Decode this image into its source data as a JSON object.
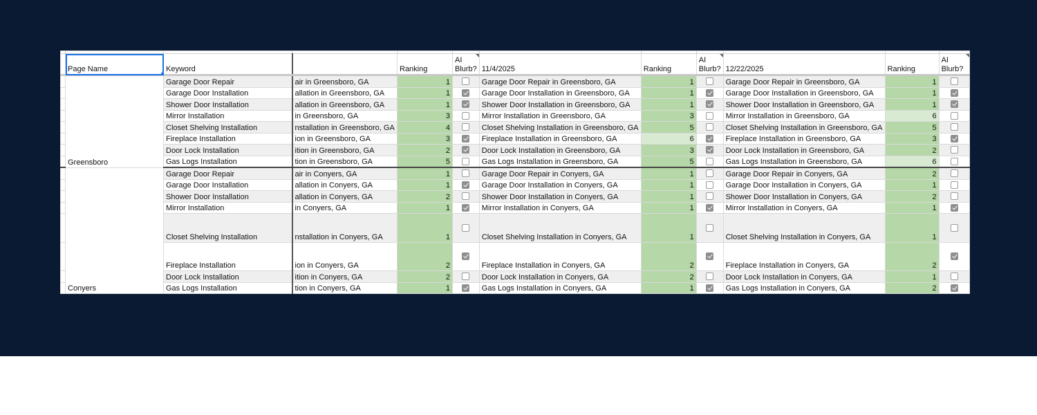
{
  "headers": {
    "page_name": "Page Name",
    "keyword": "Keyword",
    "col3": "",
    "ranking": "Ranking",
    "ai_blurb": "AI Blurb?",
    "date1": "11/4/2025",
    "date2": "12/22/2025"
  },
  "colors": {
    "background": "#0b1a33",
    "ranking_green": "#b6d7a8",
    "ranking_light_green": "#d9ead3",
    "selection": "#1a73e8"
  },
  "sections": [
    {
      "page_name": "Greensboro",
      "rows": [
        {
          "keyword": "Garage Door Repair",
          "c3": "air in Greensboro, GA",
          "r1": 1,
          "b1": false,
          "t2": "Garage Door Repair in Greensboro, GA",
          "r2": 1,
          "b2": false,
          "t3": "Garage Door Repair in Greensboro, GA",
          "r3": 1,
          "b3": false
        },
        {
          "keyword": "Garage Door Installation",
          "c3": "allation in Greensboro, GA",
          "r1": 1,
          "b1": true,
          "t2": "Garage Door Installation in Greensboro, GA",
          "r2": 1,
          "b2": true,
          "t3": "Garage Door Installation in Greensboro, GA",
          "r3": 1,
          "b3": true
        },
        {
          "keyword": "Shower Door Installation",
          "c3": "allation in Greensboro, GA",
          "r1": 1,
          "b1": true,
          "t2": "Shower Door Installation in Greensboro, GA",
          "r2": 1,
          "b2": true,
          "t3": "Shower Door Installation in Greensboro, GA",
          "r3": 1,
          "b3": true
        },
        {
          "keyword": "Mirror Installation",
          "c3": "in Greensboro, GA",
          "r1": 3,
          "b1": false,
          "t2": "Mirror Installation in Greensboro, GA",
          "r2": 3,
          "b2": false,
          "t3": "Mirror Installation in Greensboro, GA",
          "r3": 6,
          "b3": false
        },
        {
          "keyword": "Closet Shelving Installation",
          "c3": "nstallation in Greensboro, GA",
          "r1": 4,
          "b1": false,
          "t2": "Closet Shelving Installation in Greensboro, GA",
          "r2": 5,
          "b2": false,
          "t3": "Closet Shelving Installation in Greensboro, GA",
          "r3": 5,
          "b3": false
        },
        {
          "keyword": "Fireplace Installation",
          "c3": "ion in Greensboro, GA",
          "r1": 3,
          "b1": true,
          "t2": "Fireplace Installation in Greensboro, GA",
          "r2": 6,
          "b2": true,
          "t3": "Fireplace Installation in Greensboro, GA",
          "r3": 3,
          "b3": true
        },
        {
          "keyword": "Door Lock Installation",
          "c3": "ition in Greensboro, GA",
          "r1": 2,
          "b1": true,
          "t2": "Door Lock Installation in Greensboro, GA",
          "r2": 3,
          "b2": true,
          "t3": "Door Lock Installation in Greensboro, GA",
          "r3": 2,
          "b3": false
        },
        {
          "keyword": "Gas Logs Installation",
          "c3": "tion in Greensboro, GA",
          "r1": 5,
          "b1": false,
          "t2": "Gas Logs Installation in Greensboro, GA",
          "r2": 5,
          "b2": false,
          "t3": "Gas Logs Installation in Greensboro, GA",
          "r3": 6,
          "b3": false
        }
      ]
    },
    {
      "page_name": "Conyers",
      "rows": [
        {
          "keyword": "Garage Door Repair",
          "c3": "air in Conyers, GA",
          "r1": 1,
          "b1": false,
          "t2": "Garage Door Repair in Conyers, GA",
          "r2": 1,
          "b2": false,
          "t3": "Garage Door Repair in Conyers, GA",
          "r3": 2,
          "b3": false
        },
        {
          "keyword": "Garage Door Installation",
          "c3": "allation in Conyers, GA",
          "r1": 1,
          "b1": true,
          "t2": "Garage Door Installation in Conyers, GA",
          "r2": 1,
          "b2": false,
          "t3": "Garage Door Installation in Conyers, GA",
          "r3": 1,
          "b3": false
        },
        {
          "keyword": "Shower Door Installation",
          "c3": "allation in Conyers, GA",
          "r1": 2,
          "b1": false,
          "t2": "Shower Door Installation in Conyers, GA",
          "r2": 1,
          "b2": false,
          "t3": "Shower Door Installation in Conyers, GA",
          "r3": 2,
          "b3": false
        },
        {
          "keyword": "Mirror Installation",
          "c3": "in Conyers, GA",
          "r1": 1,
          "b1": true,
          "t2": "Mirror Installation in Conyers, GA",
          "r2": 1,
          "b2": true,
          "t3": "Mirror Installation in Conyers, GA",
          "r3": 1,
          "b3": true
        },
        {
          "keyword": "Closet Shelving Installation",
          "c3": "nstallation in Conyers, GA",
          "r1": 1,
          "b1": false,
          "t2": "Closet Shelving Installation in Conyers, GA",
          "r2": 1,
          "b2": false,
          "t3": "Closet Shelving Installation in Conyers, GA",
          "r3": 1,
          "b3": false,
          "tall": true
        },
        {
          "keyword": "Fireplace Installation",
          "c3": "ion in Conyers, GA",
          "r1": 2,
          "b1": true,
          "t2": "Fireplace Installation in Conyers, GA",
          "r2": 2,
          "b2": true,
          "t3": "Fireplace Installation in Conyers, GA",
          "r3": 2,
          "b3": true,
          "tall": true
        },
        {
          "keyword": "Door Lock Installation",
          "c3": "ition in Conyers, GA",
          "r1": 2,
          "b1": false,
          "t2": "Door Lock Installation in Conyers, GA",
          "r2": 2,
          "b2": false,
          "t3": "Door Lock Installation in Conyers, GA",
          "r3": 1,
          "b3": false
        },
        {
          "keyword": "Gas Logs Installation",
          "c3": "tion in Conyers, GA",
          "r1": 1,
          "b1": true,
          "t2": "Gas Logs Installation in Conyers, GA",
          "r2": 1,
          "b2": true,
          "t3": "Gas Logs Installation in Conyers, GA",
          "r3": 2,
          "b3": true
        }
      ]
    }
  ]
}
